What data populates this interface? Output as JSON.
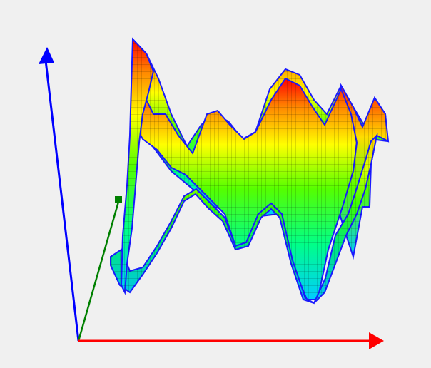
{
  "scene": {
    "background": "#f0f0f0",
    "axes": {
      "x_color": "#ff0000",
      "y_color": "#008000",
      "z_color": "#0000ff"
    },
    "surface": {
      "outline_color": "#1a1aff",
      "mesh_color": "#000000",
      "colormap": [
        "#00ccff",
        "#00ff66",
        "#66ff00",
        "#ffff00",
        "#ff8800",
        "#ff0000"
      ]
    }
  }
}
